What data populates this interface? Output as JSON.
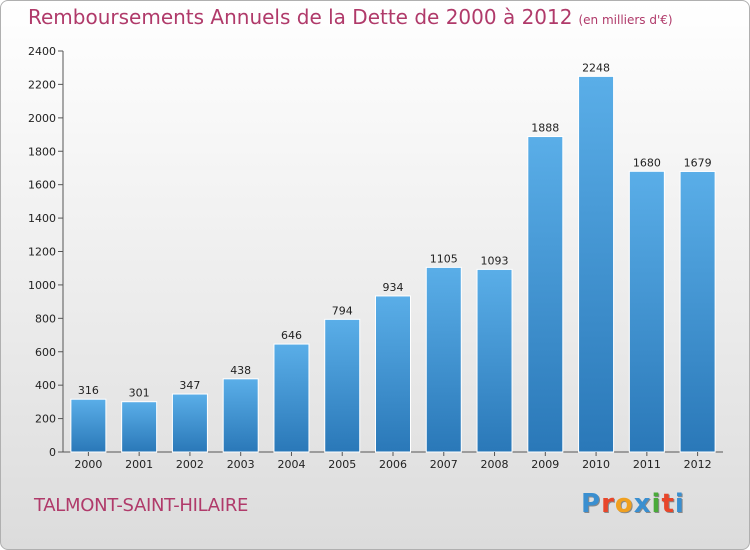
{
  "header": {
    "title": "Remboursements Annuels de la Dette de 2000 à 2012",
    "unit": "(en milliers d'€)"
  },
  "footer": {
    "city": "TALMONT-SAINT-HILAIRE",
    "logo_letters": [
      "P",
      "r",
      "o",
      "x",
      "i",
      "t",
      "i"
    ],
    "logo_colors": [
      "#3a8fd0",
      "#e8462a",
      "#f0a020",
      "#3a8fd0",
      "#4aaa3a",
      "#e8462a",
      "#3a8fd0"
    ]
  },
  "chart_data": {
    "type": "bar",
    "categories": [
      "2000",
      "2001",
      "2002",
      "2003",
      "2004",
      "2005",
      "2006",
      "2007",
      "2008",
      "2009",
      "2010",
      "2011",
      "2012"
    ],
    "values": [
      316,
      301,
      347,
      438,
      646,
      794,
      934,
      1105,
      1093,
      1888,
      2248,
      1680,
      1679
    ],
    "ylim": [
      0,
      2400
    ],
    "yticks": [
      0,
      200,
      400,
      600,
      800,
      1000,
      1200,
      1400,
      1600,
      1800,
      2000,
      2200,
      2400
    ],
    "grid": false,
    "bar_color_top": "#5aaee8",
    "bar_color_bottom": "#2a78b8"
  }
}
